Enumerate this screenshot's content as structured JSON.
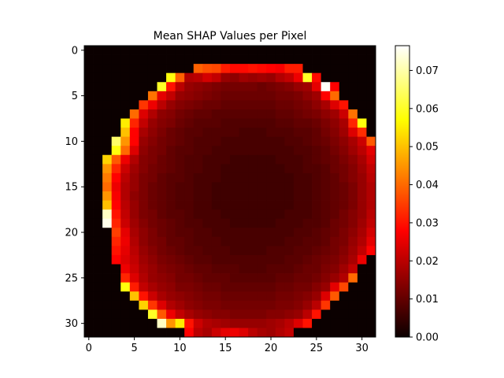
{
  "chart_data": {
    "type": "heatmap",
    "title": "Mean SHAP Values per Pixel",
    "xlabel": "",
    "ylabel": "",
    "grid": false,
    "colormap": "hot",
    "rows": 32,
    "cols": 32,
    "x_ticks": [
      0,
      5,
      10,
      15,
      20,
      25,
      30
    ],
    "y_ticks": [
      0,
      5,
      10,
      15,
      20,
      25,
      30
    ],
    "colorbar": {
      "vmin": 0.0,
      "vmax": 0.0765,
      "ticks": [
        0.0,
        0.01,
        0.02,
        0.03,
        0.04,
        0.05,
        0.06,
        0.07
      ],
      "tick_labels": [
        "0.00",
        "0.01",
        "0.02",
        "0.03",
        "0.04",
        "0.05",
        "0.06",
        "0.07"
      ]
    },
    "disk": {
      "center_row": 16,
      "center_col": 16,
      "radius": 15.2
    },
    "rows_data": [
      [
        0,
        0,
        0,
        0,
        0,
        0,
        0,
        0,
        0,
        0,
        0,
        0,
        0,
        0,
        0,
        0,
        0,
        0,
        0,
        0,
        0,
        0,
        0,
        0,
        0,
        0,
        0,
        0,
        0,
        0,
        0,
        0
      ],
      [
        0,
        0,
        0,
        0,
        0,
        0,
        0,
        0,
        0,
        0,
        0,
        0,
        0,
        0,
        0,
        0,
        0,
        0,
        0,
        0,
        0,
        0,
        0,
        0,
        0,
        0,
        0,
        0,
        0,
        0,
        0,
        0
      ],
      [
        0,
        0,
        0,
        0,
        0,
        0,
        0,
        0,
        0,
        0,
        0,
        0,
        0.039,
        0.037,
        0.036,
        0.031,
        0.029,
        0.029,
        0.03,
        0.029,
        0.028,
        0.027,
        0.031,
        0.031,
        0,
        0,
        0,
        0,
        0,
        0,
        0,
        0
      ],
      [
        0,
        0,
        0,
        0,
        0,
        0,
        0,
        0,
        0,
        0.058,
        0.039,
        0.019,
        0.02,
        0.023,
        0.021,
        0.016,
        0.015,
        0.017,
        0.016,
        0.017,
        0.016,
        0.019,
        0.021,
        0.026,
        0.06,
        0.029,
        0,
        0,
        0,
        0,
        0,
        0
      ],
      [
        0,
        0,
        0,
        0,
        0,
        0,
        0,
        0,
        0.06,
        0.03,
        0.02,
        0.016,
        0.015,
        0.014,
        0.013,
        0.012,
        0.012,
        0.012,
        0.012,
        0.011,
        0.012,
        0.013,
        0.014,
        0.016,
        0.017,
        0.025,
        0.076,
        0.028,
        0,
        0,
        0,
        0
      ],
      [
        0,
        0,
        0,
        0,
        0,
        0,
        0,
        0.041,
        0.025,
        0.021,
        0.016,
        0.015,
        0.014,
        0.013,
        0.012,
        0.011,
        0.011,
        0.011,
        0.011,
        0.011,
        0.011,
        0.012,
        0.012,
        0.013,
        0.015,
        0.017,
        0.028,
        0.04,
        0,
        0,
        0,
        0
      ],
      [
        0,
        0,
        0,
        0,
        0,
        0,
        0.034,
        0.026,
        0.02,
        0.016,
        0.014,
        0.013,
        0.012,
        0.011,
        0.011,
        0.01,
        0.01,
        0.01,
        0.01,
        0.01,
        0.01,
        0.011,
        0.011,
        0.012,
        0.013,
        0.015,
        0.018,
        0.024,
        0.03,
        0,
        0,
        0
      ],
      [
        0,
        0,
        0,
        0,
        0,
        0.04,
        0.024,
        0.019,
        0.015,
        0.014,
        0.012,
        0.011,
        0.01,
        0.01,
        0.009,
        0.009,
        0.009,
        0.009,
        0.009,
        0.009,
        0.009,
        0.01,
        0.01,
        0.011,
        0.012,
        0.013,
        0.015,
        0.017,
        0.022,
        0.041,
        0,
        0
      ],
      [
        0,
        0,
        0,
        0,
        0.055,
        0.032,
        0.021,
        0.016,
        0.014,
        0.013,
        0.011,
        0.01,
        0.009,
        0.009,
        0.009,
        0.008,
        0.008,
        0.008,
        0.008,
        0.008,
        0.008,
        0.009,
        0.009,
        0.01,
        0.01,
        0.011,
        0.013,
        0.015,
        0.018,
        0.032,
        0.058,
        0
      ],
      [
        0,
        0,
        0,
        0,
        0.05,
        0.028,
        0.018,
        0.015,
        0.013,
        0.011,
        0.01,
        0.009,
        0.009,
        0.008,
        0.008,
        0.008,
        0.008,
        0.007,
        0.007,
        0.007,
        0.008,
        0.008,
        0.008,
        0.009,
        0.009,
        0.01,
        0.012,
        0.014,
        0.017,
        0.024,
        0.033,
        0
      ],
      [
        0,
        0,
        0,
        0.065,
        0.045,
        0.028,
        0.016,
        0.014,
        0.012,
        0.011,
        0.01,
        0.009,
        0.008,
        0.008,
        0.008,
        0.007,
        0.007,
        0.007,
        0.007,
        0.007,
        0.007,
        0.007,
        0.008,
        0.008,
        0.009,
        0.01,
        0.011,
        0.013,
        0.015,
        0.018,
        0.022,
        0.038
      ],
      [
        0,
        0,
        0,
        0.058,
        0.04,
        0.024,
        0.015,
        0.013,
        0.012,
        0.01,
        0.009,
        0.009,
        0.008,
        0.008,
        0.007,
        0.007,
        0.007,
        0.007,
        0.007,
        0.007,
        0.007,
        0.007,
        0.007,
        0.008,
        0.008,
        0.009,
        0.01,
        0.012,
        0.014,
        0.017,
        0.02,
        0.025
      ],
      [
        0,
        0,
        0.052,
        0.038,
        0.026,
        0.019,
        0.014,
        0.013,
        0.011,
        0.01,
        0.009,
        0.008,
        0.008,
        0.007,
        0.007,
        0.007,
        0.006,
        0.006,
        0.006,
        0.006,
        0.006,
        0.007,
        0.007,
        0.007,
        0.008,
        0.009,
        0.01,
        0.011,
        0.013,
        0.015,
        0.018,
        0.023
      ],
      [
        0,
        0,
        0.045,
        0.032,
        0.022,
        0.017,
        0.014,
        0.012,
        0.011,
        0.01,
        0.009,
        0.008,
        0.008,
        0.007,
        0.007,
        0.006,
        0.006,
        0.006,
        0.006,
        0.006,
        0.006,
        0.006,
        0.007,
        0.007,
        0.008,
        0.008,
        0.009,
        0.011,
        0.012,
        0.014,
        0.017,
        0.021
      ],
      [
        0,
        0,
        0.042,
        0.028,
        0.02,
        0.016,
        0.013,
        0.012,
        0.01,
        0.009,
        0.009,
        0.008,
        0.007,
        0.007,
        0.007,
        0.006,
        0.006,
        0.006,
        0.006,
        0.006,
        0.006,
        0.006,
        0.006,
        0.007,
        0.007,
        0.008,
        0.009,
        0.01,
        0.012,
        0.014,
        0.016,
        0.02
      ],
      [
        0,
        0,
        0.04,
        0.026,
        0.019,
        0.016,
        0.013,
        0.011,
        0.01,
        0.009,
        0.008,
        0.008,
        0.007,
        0.007,
        0.006,
        0.006,
        0.006,
        0.006,
        0.006,
        0.006,
        0.006,
        0.006,
        0.006,
        0.007,
        0.007,
        0.008,
        0.009,
        0.01,
        0.011,
        0.013,
        0.016,
        0.019
      ],
      [
        0,
        0,
        0.045,
        0.027,
        0.019,
        0.015,
        0.013,
        0.011,
        0.01,
        0.009,
        0.008,
        0.008,
        0.007,
        0.007,
        0.006,
        0.006,
        0.006,
        0.006,
        0.006,
        0.006,
        0.006,
        0.006,
        0.006,
        0.007,
        0.007,
        0.008,
        0.009,
        0.01,
        0.011,
        0.013,
        0.016,
        0.019
      ],
      [
        0,
        0,
        0.05,
        0.028,
        0.02,
        0.016,
        0.013,
        0.011,
        0.01,
        0.009,
        0.008,
        0.008,
        0.007,
        0.007,
        0.006,
        0.006,
        0.006,
        0.006,
        0.006,
        0.006,
        0.006,
        0.006,
        0.006,
        0.007,
        0.007,
        0.008,
        0.009,
        0.01,
        0.011,
        0.013,
        0.016,
        0.019
      ],
      [
        0,
        0,
        0.072,
        0.03,
        0.021,
        0.016,
        0.013,
        0.012,
        0.01,
        0.009,
        0.009,
        0.008,
        0.007,
        0.007,
        0.007,
        0.006,
        0.006,
        0.006,
        0.006,
        0.006,
        0.006,
        0.006,
        0.007,
        0.007,
        0.007,
        0.008,
        0.009,
        0.01,
        0.012,
        0.014,
        0.016,
        0.02
      ],
      [
        0,
        0,
        0.075,
        0.032,
        0.022,
        0.017,
        0.014,
        0.012,
        0.011,
        0.01,
        0.009,
        0.008,
        0.008,
        0.007,
        0.007,
        0.007,
        0.006,
        0.006,
        0.006,
        0.006,
        0.006,
        0.007,
        0.007,
        0.007,
        0.008,
        0.008,
        0.009,
        0.011,
        0.012,
        0.014,
        0.017,
        0.021
      ],
      [
        0,
        0,
        0,
        0.035,
        0.025,
        0.018,
        0.015,
        0.013,
        0.011,
        0.01,
        0.009,
        0.009,
        0.008,
        0.008,
        0.007,
        0.007,
        0.007,
        0.007,
        0.007,
        0.007,
        0.007,
        0.007,
        0.007,
        0.008,
        0.008,
        0.009,
        0.01,
        0.011,
        0.013,
        0.015,
        0.018,
        0.023
      ],
      [
        0,
        0,
        0,
        0.032,
        0.026,
        0.019,
        0.015,
        0.013,
        0.012,
        0.01,
        0.01,
        0.009,
        0.008,
        0.008,
        0.008,
        0.007,
        0.007,
        0.007,
        0.007,
        0.007,
        0.007,
        0.007,
        0.008,
        0.008,
        0.009,
        0.009,
        0.01,
        0.012,
        0.013,
        0.016,
        0.019,
        0.025
      ],
      [
        0,
        0,
        0,
        0.03,
        0.025,
        0.02,
        0.016,
        0.014,
        0.012,
        0.011,
        0.01,
        0.009,
        0.009,
        0.008,
        0.008,
        0.008,
        0.007,
        0.007,
        0.007,
        0.007,
        0.008,
        0.008,
        0.008,
        0.009,
        0.009,
        0.01,
        0.011,
        0.012,
        0.014,
        0.017,
        0.021,
        0.028
      ],
      [
        0,
        0,
        0,
        0.028,
        0.024,
        0.021,
        0.017,
        0.015,
        0.013,
        0.012,
        0.011,
        0.01,
        0.009,
        0.009,
        0.008,
        0.008,
        0.008,
        0.008,
        0.008,
        0.008,
        0.008,
        0.008,
        0.009,
        0.009,
        0.01,
        0.011,
        0.012,
        0.013,
        0.015,
        0.018,
        0.026,
        0
      ],
      [
        0,
        0,
        0,
        0,
        0.026,
        0.022,
        0.018,
        0.016,
        0.014,
        0.013,
        0.012,
        0.011,
        0.01,
        0.01,
        0.009,
        0.009,
        0.009,
        0.008,
        0.008,
        0.008,
        0.009,
        0.009,
        0.009,
        0.01,
        0.011,
        0.011,
        0.013,
        0.014,
        0.017,
        0.021,
        0,
        0
      ],
      [
        0,
        0,
        0,
        0,
        0.032,
        0.024,
        0.019,
        0.016,
        0.015,
        0.014,
        0.012,
        0.012,
        0.011,
        0.01,
        0.01,
        0.01,
        0.009,
        0.009,
        0.009,
        0.009,
        0.009,
        0.01,
        0.01,
        0.011,
        0.011,
        0.012,
        0.014,
        0.016,
        0.019,
        0.04,
        0,
        0
      ],
      [
        0,
        0,
        0,
        0,
        0.058,
        0.031,
        0.021,
        0.018,
        0.016,
        0.015,
        0.013,
        0.013,
        0.012,
        0.011,
        0.011,
        0.01,
        0.01,
        0.01,
        0.01,
        0.01,
        0.01,
        0.011,
        0.011,
        0.012,
        0.012,
        0.014,
        0.016,
        0.025,
        0.036,
        0,
        0,
        0
      ],
      [
        0,
        0,
        0,
        0,
        0,
        0.05,
        0.03,
        0.022,
        0.018,
        0.016,
        0.015,
        0.014,
        0.013,
        0.012,
        0.012,
        0.011,
        0.011,
        0.011,
        0.011,
        0.011,
        0.011,
        0.012,
        0.012,
        0.013,
        0.014,
        0.016,
        0.024,
        0.038,
        0,
        0,
        0,
        0
      ],
      [
        0,
        0,
        0,
        0,
        0,
        0,
        0.052,
        0.034,
        0.024,
        0.019,
        0.017,
        0.015,
        0.014,
        0.013,
        0.013,
        0.012,
        0.012,
        0.012,
        0.012,
        0.012,
        0.012,
        0.013,
        0.013,
        0.014,
        0.016,
        0.02,
        0.034,
        0,
        0,
        0,
        0,
        0
      ],
      [
        0,
        0,
        0,
        0,
        0,
        0,
        0,
        0.06,
        0.038,
        0.026,
        0.021,
        0.018,
        0.016,
        0.015,
        0.014,
        0.014,
        0.013,
        0.013,
        0.013,
        0.013,
        0.014,
        0.014,
        0.015,
        0.016,
        0.02,
        0.03,
        0,
        0,
        0,
        0,
        0,
        0
      ],
      [
        0,
        0,
        0,
        0,
        0,
        0,
        0,
        0,
        0.072,
        0.045,
        0.055,
        0.03,
        0.022,
        0.019,
        0.018,
        0.017,
        0.016,
        0.016,
        0.016,
        0.016,
        0.017,
        0.018,
        0.02,
        0.024,
        0.03,
        0,
        0,
        0,
        0,
        0,
        0,
        0
      ],
      [
        0,
        0,
        0,
        0,
        0,
        0,
        0,
        0,
        0,
        0,
        0,
        0.028,
        0.02,
        0.018,
        0.022,
        0.025,
        0.026,
        0.024,
        0.02,
        0.018,
        0.017,
        0.019,
        0.021,
        0,
        0,
        0,
        0,
        0,
        0,
        0,
        0,
        0
      ]
    ]
  }
}
